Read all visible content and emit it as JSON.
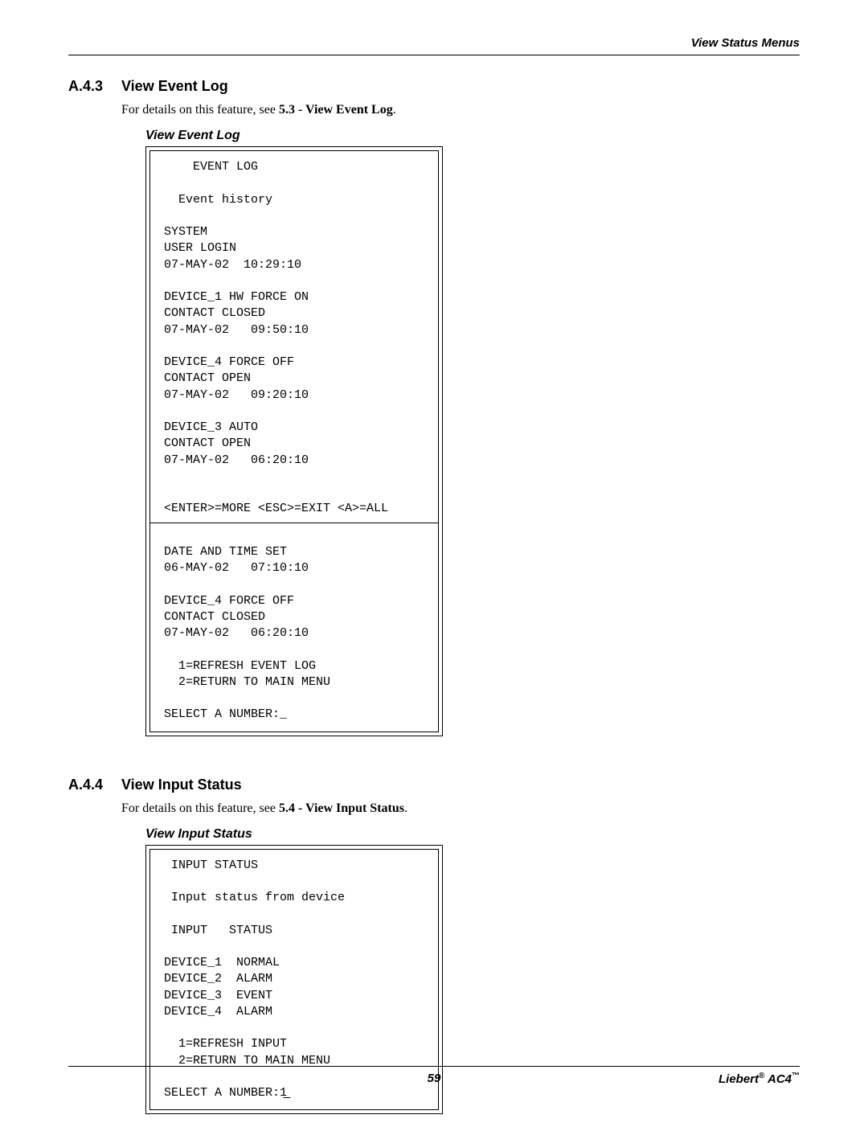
{
  "header": {
    "right_text": "View Status Menus"
  },
  "sections": [
    {
      "num": "A.4.3",
      "title": "View Event Log",
      "desc_pre": "For details on this feature, see ",
      "desc_bold": "5.3 - View Event Log",
      "desc_post": ".",
      "box_title": "View Event Log",
      "has_split": true,
      "top_content": "     EVENT LOG\n\n   Event history\n\n SYSTEM\n USER LOGIN\n 07-MAY-02  10:29:10\n\n DEVICE_1 HW FORCE ON\n CONTACT CLOSED\n 07-MAY-02   09:50:10\n\n DEVICE_4 FORCE OFF\n CONTACT OPEN\n 07-MAY-02   09:20:10\n\n DEVICE_3 AUTO\n CONTACT OPEN\n 07-MAY-02   06:20:10\n\n\n <ENTER>=MORE <ESC>=EXIT <A>=ALL",
      "bottom_content": "\n DATE AND TIME SET\n 06-MAY-02   07:10:10\n\n DEVICE_4 FORCE OFF\n CONTACT CLOSED\n 07-MAY-02   06:20:10\n\n   1=REFRESH EVENT LOG\n   2=RETURN TO MAIN MENU\n\n SELECT A NUMBER:_"
    },
    {
      "num": "A.4.4",
      "title": "View Input Status",
      "desc_pre": "For details on this feature, see ",
      "desc_bold": "5.4 - View Input Status",
      "desc_post": ".",
      "box_title": "View Input Status",
      "has_split": false,
      "top_content": "  INPUT STATUS\n\n  Input status from device\n\n  INPUT   STATUS\n\n DEVICE_1  NORMAL\n DEVICE_2  ALARM\n DEVICE_3  EVENT\n DEVICE_4  ALARM\n\n   1=REFRESH INPUT\n   2=RETURN TO MAIN MENU\n\n SELECT A NUMBER:1̲",
      "bottom_content": ""
    }
  ],
  "footer": {
    "page_num": "59",
    "brand_main": "Liebert",
    "brand_reg": "®",
    "brand_model": " AC4",
    "brand_tm": "™"
  }
}
